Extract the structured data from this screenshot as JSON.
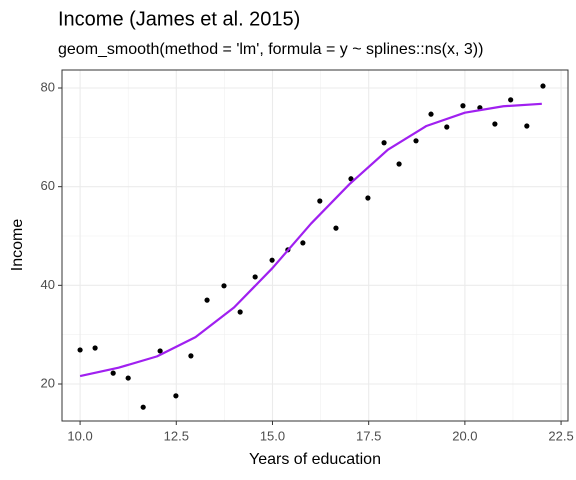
{
  "chart_data": {
    "type": "scatter",
    "title": "Income (James et al. 2015)",
    "subtitle": "geom_smooth(method = 'lm', formula = y ~ splines::ns(x, 3))",
    "xlabel": "Years of education",
    "ylabel": "Income",
    "xlim": [
      9.53,
      22.68
    ],
    "ylim": [
      12.5,
      83.65
    ],
    "xticks": [
      {
        "value": 10,
        "label": "10.0"
      },
      12.5,
      {
        "value": 15,
        "label": "15.0"
      },
      17.5,
      {
        "value": 20,
        "label": "20.0"
      },
      22.5
    ],
    "yticks": [
      20,
      40,
      60,
      80
    ],
    "x_minor_ticks": [
      11.25,
      13.75,
      16.25,
      18.75,
      21.25
    ],
    "y_minor_ticks": [
      30,
      50,
      70
    ],
    "grid": true,
    "series": [
      {
        "type": "scatter",
        "color": "#000000",
        "x": [
          10.0,
          10.39,
          10.86,
          11.25,
          11.64,
          12.08,
          12.49,
          12.88,
          13.3,
          13.74,
          14.16,
          14.55,
          14.99,
          15.4,
          15.79,
          16.23,
          16.65,
          17.04,
          17.48,
          17.9,
          18.29,
          18.73,
          19.12,
          19.53,
          19.95,
          20.39,
          20.78,
          21.19,
          21.61,
          22.03
        ],
        "values": [
          26.9,
          27.3,
          22.2,
          21.2,
          15.3,
          26.7,
          17.6,
          25.7,
          37.0,
          39.9,
          34.6,
          41.7,
          45.1,
          47.2,
          48.6,
          57.1,
          51.6,
          61.6,
          57.7,
          68.9,
          64.6,
          69.3,
          74.7,
          72.1,
          76.4,
          76.0,
          72.7,
          77.6,
          72.3,
          80.4
        ]
      },
      {
        "type": "line",
        "color": "#a020f0",
        "x": [
          10,
          11,
          12,
          13,
          14,
          15,
          16,
          17,
          18,
          19,
          20,
          21,
          22
        ],
        "values": [
          21.6,
          23.3,
          25.6,
          29.5,
          35.5,
          43.5,
          52.5,
          60.5,
          67.5,
          72.3,
          75.0,
          76.3,
          76.8
        ]
      }
    ]
  }
}
